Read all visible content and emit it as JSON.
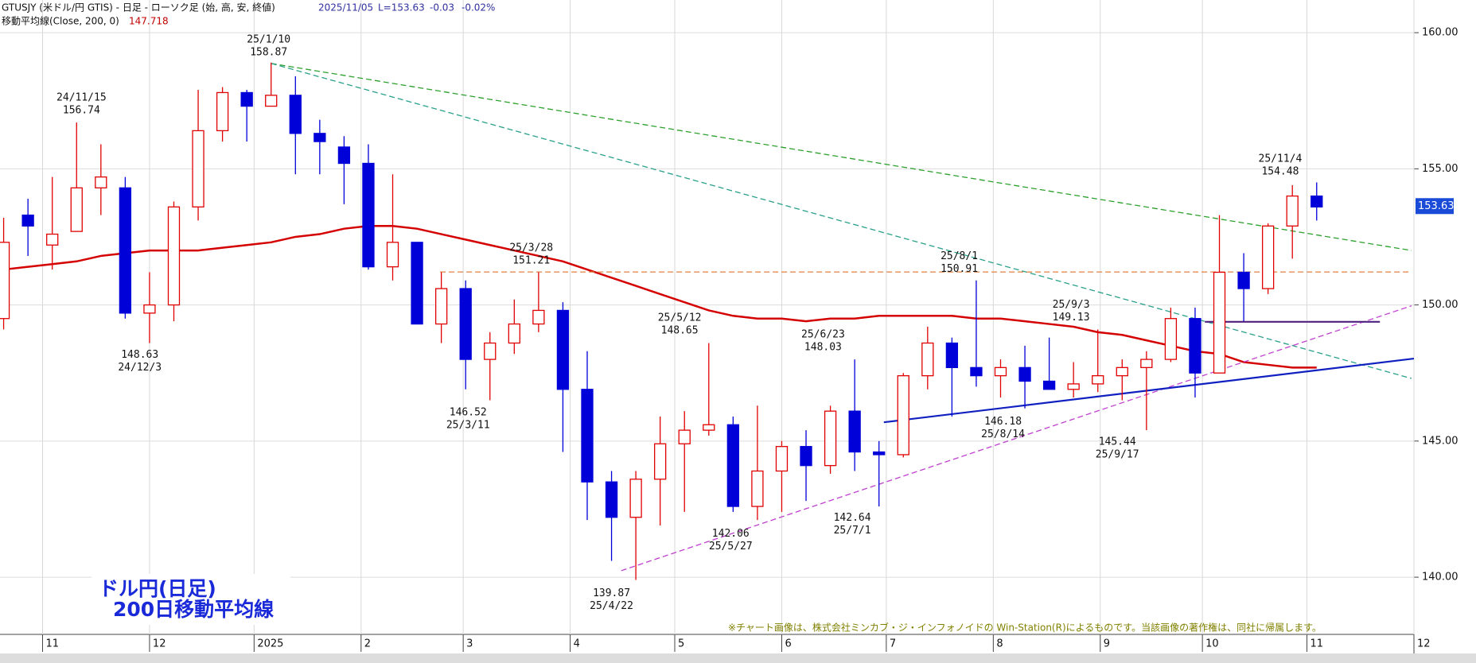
{
  "chart_data": {
    "type": "candlestick",
    "header": "GTUSJY (米ドル/円 GTIS) - 日足 - ローソク足 (始, 高, 安, 終値)",
    "header_date": "2025/11/05",
    "header_last": "L=153.63",
    "header_change": "-0.03",
    "header_change_pct": "-0.02%",
    "ma_last": 147.718,
    "last_price": 153.63,
    "chart_label": [
      "ドル円(日足)",
      "200日移動平均線"
    ],
    "note": "※チャート画像は、株式会社ミンカブ・ジ・インフォノイドの Win-Station(R)によるものです。当該画像の著作権は、同社に帰属します。",
    "categories": [
      null,
      null,
      null,
      null,
      null,
      null,
      null,
      null,
      null,
      null,
      null,
      null,
      null,
      null,
      null,
      null,
      null,
      null,
      null,
      null,
      null,
      null,
      null,
      null,
      null,
      null,
      null,
      null,
      null,
      null,
      null,
      null,
      null,
      null,
      null,
      null,
      null,
      null,
      null,
      null,
      null,
      null,
      null,
      null,
      null,
      null,
      null,
      null,
      null,
      null,
      null,
      null,
      null,
      null,
      null
    ],
    "open": [
      149.5,
      153.3,
      152.2,
      152.7,
      154.3,
      154.3,
      149.7,
      150.0,
      153.6,
      156.4,
      157.8,
      157.3,
      157.7,
      156.3,
      155.8,
      155.2,
      151.4,
      152.3,
      149.3,
      150.6,
      148.0,
      148.6,
      149.3,
      149.8,
      146.9,
      143.5,
      142.2,
      143.6,
      144.9,
      145.4,
      145.6,
      142.6,
      143.9,
      144.8,
      144.1,
      146.1,
      144.6,
      144.5,
      147.4,
      148.6,
      147.7,
      147.4,
      147.7,
      147.2,
      146.9,
      147.1,
      147.4,
      147.7,
      148.0,
      149.5,
      147.5,
      151.2,
      150.6,
      152.9,
      154.0
    ],
    "high": [
      153.2,
      153.9,
      154.7,
      156.7,
      155.9,
      154.7,
      151.2,
      153.8,
      157.9,
      158.0,
      157.9,
      158.9,
      158.4,
      156.8,
      156.2,
      155.9,
      154.8,
      152.2,
      151.2,
      150.9,
      149.0,
      150.2,
      151.2,
      150.1,
      148.3,
      143.9,
      143.9,
      145.9,
      146.1,
      148.6,
      145.9,
      146.3,
      145.0,
      145.4,
      146.3,
      148.0,
      145.0,
      147.5,
      149.2,
      148.8,
      150.9,
      148.0,
      148.5,
      148.8,
      147.9,
      149.1,
      148.0,
      148.3,
      149.9,
      149.9,
      153.3,
      151.9,
      153.0,
      154.4,
      154.5
    ],
    "low": [
      149.1,
      151.8,
      151.3,
      152.7,
      153.3,
      149.5,
      148.6,
      149.4,
      153.1,
      156.0,
      156.0,
      157.3,
      154.8,
      154.8,
      153.7,
      151.3,
      150.9,
      149.3,
      148.6,
      146.9,
      146.5,
      148.2,
      149.0,
      144.6,
      142.1,
      140.6,
      139.9,
      141.9,
      142.4,
      145.2,
      142.4,
      142.1,
      142.4,
      142.8,
      143.8,
      143.9,
      142.6,
      144.4,
      146.9,
      145.9,
      147.0,
      146.6,
      146.2,
      146.9,
      146.6,
      146.8,
      146.5,
      145.4,
      147.9,
      146.6,
      147.5,
      149.4,
      150.4,
      151.7,
      153.1
    ],
    "close": [
      152.3,
      152.9,
      152.6,
      154.3,
      154.7,
      149.7,
      150.0,
      153.6,
      156.4,
      157.8,
      157.3,
      157.7,
      156.3,
      156.0,
      155.2,
      151.4,
      152.3,
      149.3,
      150.6,
      148.0,
      148.6,
      149.3,
      149.8,
      146.9,
      143.5,
      142.2,
      143.6,
      144.9,
      145.4,
      145.6,
      142.6,
      143.9,
      144.8,
      144.1,
      146.1,
      144.6,
      144.5,
      147.4,
      148.6,
      147.7,
      147.4,
      147.7,
      147.2,
      146.9,
      147.1,
      147.4,
      147.7,
      148.0,
      149.5,
      147.5,
      151.2,
      150.6,
      152.9,
      154.0,
      153.6
    ],
    "up_color": "#e00000",
    "down_color": "#0000d8",
    "series": [
      {
        "name": "移動平均線(Close, 200, 0)",
        "color": "#d40000",
        "values": [
          151.3,
          151.4,
          151.5,
          151.6,
          151.8,
          151.9,
          152.0,
          152.0,
          152.0,
          152.1,
          152.2,
          152.3,
          152.5,
          152.6,
          152.8,
          152.9,
          152.9,
          152.8,
          152.6,
          152.4,
          152.2,
          152.0,
          151.8,
          151.6,
          151.3,
          151.0,
          150.7,
          150.4,
          150.1,
          149.8,
          149.6,
          149.5,
          149.5,
          149.4,
          149.5,
          149.5,
          149.6,
          149.6,
          149.6,
          149.6,
          149.5,
          149.5,
          149.4,
          149.3,
          149.2,
          149.0,
          148.9,
          148.7,
          148.5,
          148.3,
          148.2,
          147.9,
          147.8,
          147.7,
          147.7
        ]
      }
    ],
    "xlim": [
      -0.15,
      58
    ],
    "xticks": [
      {
        "value": 1.6,
        "label": "11"
      },
      {
        "value": 6.0,
        "label": "12"
      },
      {
        "value": 10.3,
        "label": "2025"
      },
      {
        "value": 14.7,
        "label": "2"
      },
      {
        "value": 18.9,
        "label": "3"
      },
      {
        "value": 23.3,
        "label": "4"
      },
      {
        "value": 27.6,
        "label": "5"
      },
      {
        "value": 32.0,
        "label": "6"
      },
      {
        "value": 36.3,
        "label": "7"
      },
      {
        "value": 40.7,
        "label": "8"
      },
      {
        "value": 45.1,
        "label": "9"
      },
      {
        "value": 49.3,
        "label": "10"
      },
      {
        "value": 53.6,
        "label": "11"
      },
      {
        "value": 58.0,
        "label": "12"
      }
    ],
    "ylim": [
      137.9,
      161.2
    ],
    "yticks": [
      {
        "value": 140,
        "label": "140.00"
      },
      {
        "value": 145,
        "label": "145.00"
      },
      {
        "value": 150,
        "label": "150.00"
      },
      {
        "value": 155,
        "label": "155.00"
      },
      {
        "value": 160,
        "label": "160.00"
      }
    ],
    "grid": true,
    "lines": [
      {
        "x1": 11.0,
        "y1": 158.87,
        "x2": 57.9,
        "y2": 152.0,
        "color": "#2ca02c",
        "dash": true
      },
      {
        "x1": 11.0,
        "y1": 158.87,
        "x2": 57.9,
        "y2": 147.3,
        "color": "#2aa08a",
        "dash": true
      },
      {
        "x1": 17.95,
        "y1": 151.21,
        "x2": 57.9,
        "y2": 151.21,
        "color": "#e08040",
        "dash": true
      },
      {
        "x1": 25.4,
        "y1": 140.24,
        "x2": 57.9,
        "y2": 149.97,
        "color": "#c040d0",
        "dash": true
      },
      {
        "x1": 36.2,
        "y1": 145.69,
        "x2": 58.0,
        "y2": 148.03,
        "color": "#1020c0",
        "dash": false
      },
      {
        "x1": 49.4,
        "y1": 149.38,
        "x2": 56.6,
        "y2": 149.38,
        "color": "#502080",
        "dash": false
      }
    ],
    "annotations": [
      {
        "x": 3.2,
        "date": "24/11/15",
        "price": 156.74,
        "position": "above"
      },
      {
        "x": 5.6,
        "date": "24/12/3",
        "price": 148.63,
        "position": "below"
      },
      {
        "x": 10.9,
        "date": "25/1/10",
        "price": 158.87,
        "position": "above"
      },
      {
        "x": 19.1,
        "date": "25/3/11",
        "price": 146.52,
        "position": "below"
      },
      {
        "x": 21.7,
        "date": "25/3/28",
        "price": 151.21,
        "position": "above"
      },
      {
        "x": 25.0,
        "date": "25/4/22",
        "price": 139.87,
        "position": "below"
      },
      {
        "x": 27.8,
        "date": "25/5/12",
        "price": 148.65,
        "position": "above"
      },
      {
        "x": 29.9,
        "date": "25/5/27",
        "price": 142.06,
        "position": "below"
      },
      {
        "x": 33.7,
        "date": "25/6/23",
        "price": 148.03,
        "position": "above"
      },
      {
        "x": 34.9,
        "date": "25/7/1",
        "price": 142.64,
        "position": "below"
      },
      {
        "x": 39.3,
        "date": "25/8/1",
        "price": 150.91,
        "position": "above"
      },
      {
        "x": 41.1,
        "date": "25/8/14",
        "price": 146.18,
        "position": "below"
      },
      {
        "x": 43.9,
        "date": "25/9/3",
        "price": 149.13,
        "position": "above"
      },
      {
        "x": 45.8,
        "date": "25/9/17",
        "price": 145.44,
        "position": "below"
      },
      {
        "x": 52.5,
        "date": "25/11/4",
        "price": 154.48,
        "position": "above"
      }
    ]
  }
}
